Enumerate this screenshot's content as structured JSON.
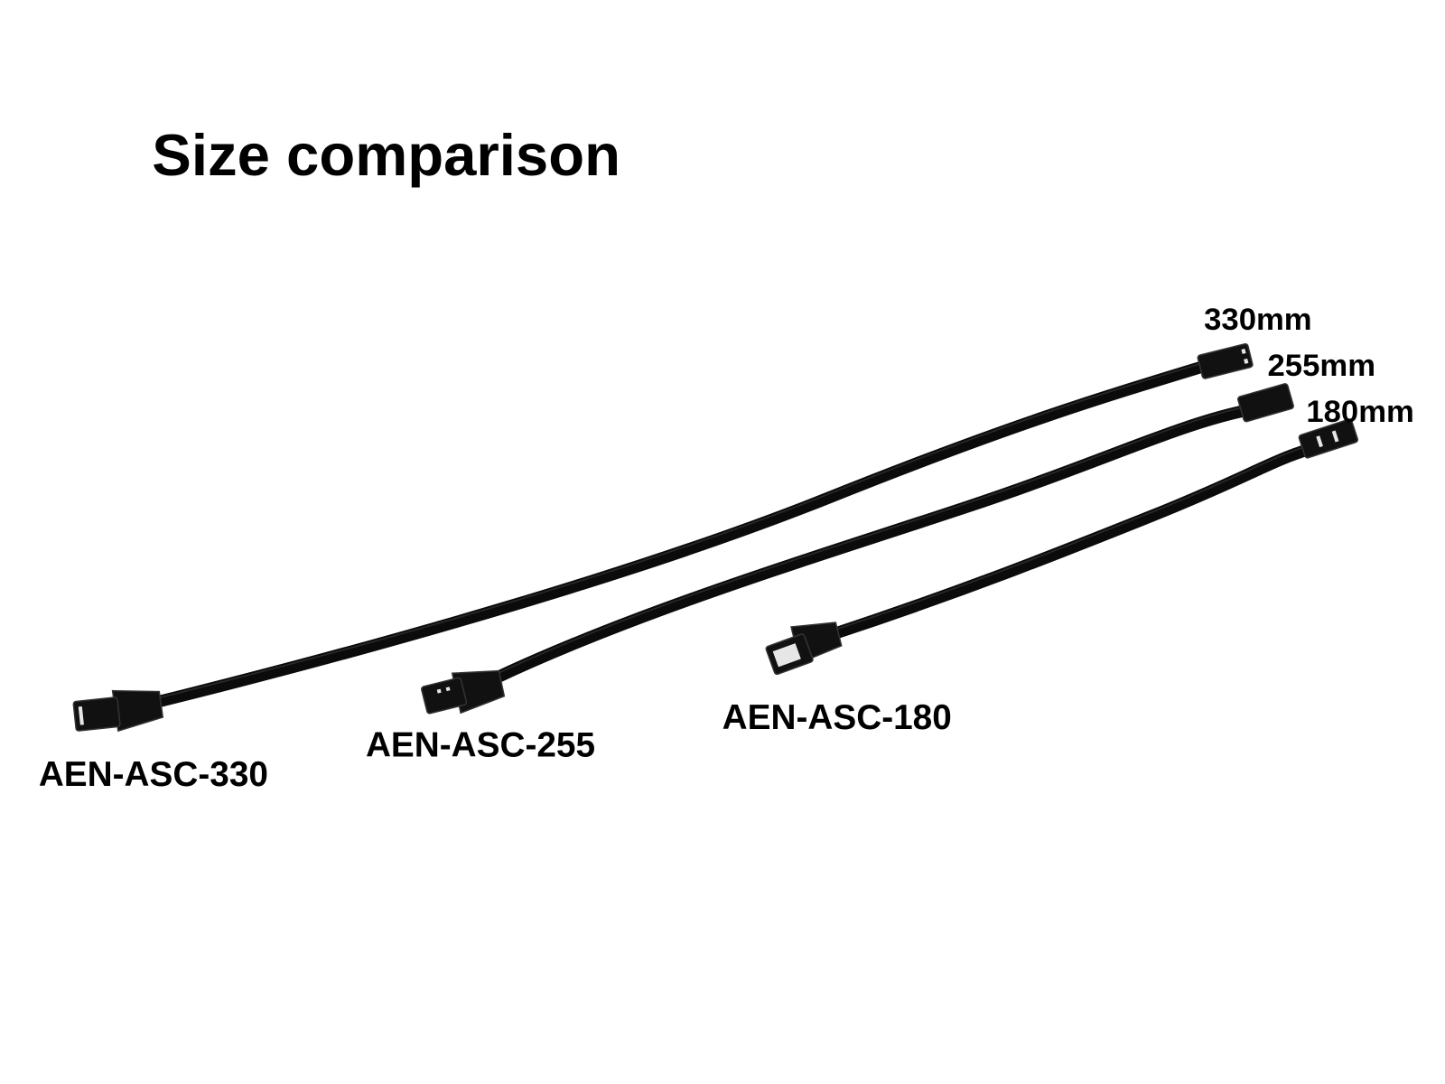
{
  "title": "Size comparison",
  "cables": [
    {
      "model": "AEN-ASC-330",
      "length": "330mm"
    },
    {
      "model": "AEN-ASC-255",
      "length": "255mm"
    },
    {
      "model": "AEN-ASC-180",
      "length": "180mm"
    }
  ]
}
